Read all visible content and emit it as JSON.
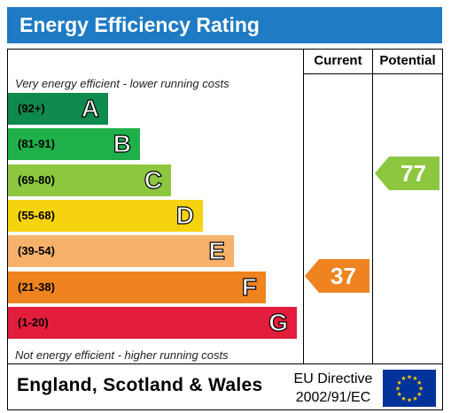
{
  "title": "Energy Efficiency Rating",
  "columns": {
    "current": "Current",
    "potential": "Potential"
  },
  "notes": {
    "top": "Very energy efficient - lower running costs",
    "bottom": "Not energy efficient - higher running costs"
  },
  "bands": [
    {
      "range": "(92+)",
      "letter": "A",
      "color": "#0f8a4f"
    },
    {
      "range": "(81-91)",
      "letter": "B",
      "color": "#20b04b"
    },
    {
      "range": "(69-80)",
      "letter": "C",
      "color": "#8dc63f"
    },
    {
      "range": "(55-68)",
      "letter": "D",
      "color": "#f5d30f"
    },
    {
      "range": "(39-54)",
      "letter": "E",
      "color": "#f6b26b"
    },
    {
      "range": "(21-38)",
      "letter": "F",
      "color": "#ee8320"
    },
    {
      "range": "(1-20)",
      "letter": "G",
      "color": "#e31d3c"
    }
  ],
  "current": {
    "value": "37",
    "band": "F",
    "color": "#ee8320"
  },
  "potential": {
    "value": "77",
    "band": "C",
    "color": "#8dc63f"
  },
  "footer": {
    "region": "England, Scotland & Wales",
    "directive_line1": "EU Directive",
    "directive_line2": "2002/91/EC",
    "flag_icon": "eu-flag-icon",
    "flag_color": "#003399",
    "star_color": "#ffcc00"
  }
}
